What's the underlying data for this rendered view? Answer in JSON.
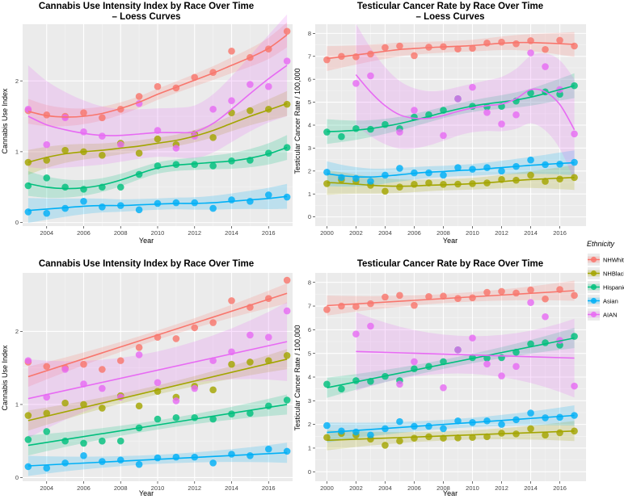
{
  "legend": {
    "title": "Ethnicity",
    "items": [
      {
        "name": "NHWhite",
        "color": "#F8766D"
      },
      {
        "name": "NHBlack",
        "color": "#A3A500"
      },
      {
        "name": "Hispanic",
        "color": "#00BF7D"
      },
      {
        "name": "Asian",
        "color": "#00B0F6"
      },
      {
        "name": "AIAN",
        "color": "#E76BF3"
      }
    ]
  },
  "chart_data": [
    {
      "id": "cannabis_loess",
      "type": "scatter",
      "fit": "loess",
      "title": [
        "Cannabis Use Intensity Index by Race Over Time",
        "– Loess Curves"
      ],
      "xlabel": "Year",
      "ylabel": "Cannabis Use Index",
      "xlim": [
        2002.7,
        2017.3
      ],
      "ylim": [
        -0.05,
        2.8
      ],
      "xticks": [
        2004,
        2006,
        2008,
        2010,
        2012,
        2014,
        2016
      ],
      "xtick_labels": [
        "2004",
        "2006",
        "2008",
        "2010",
        "2012",
        "2014",
        "2016"
      ],
      "yticks": [
        0,
        1,
        2
      ],
      "ytick_labels": [
        "0",
        "1",
        "2"
      ],
      "x": [
        2003,
        2004,
        2005,
        2006,
        2007,
        2008,
        2009,
        2010,
        2011,
        2012,
        2013,
        2014,
        2015,
        2016,
        2017
      ],
      "series": [
        {
          "name": "NHWhite",
          "values": [
            1.58,
            1.52,
            1.5,
            1.55,
            1.48,
            1.6,
            1.78,
            1.92,
            1.9,
            2.05,
            2.12,
            2.42,
            2.33,
            2.45,
            2.7
          ],
          "fit": [
            1.57,
            1.51,
            1.49,
            1.5,
            1.54,
            1.61,
            1.7,
            1.81,
            1.91,
            2.01,
            2.11,
            2.22,
            2.33,
            2.46,
            2.65
          ]
        },
        {
          "name": "NHBlack",
          "values": [
            0.85,
            0.88,
            1.02,
            1.0,
            0.95,
            1.12,
            0.98,
            1.18,
            1.1,
            1.25,
            1.2,
            1.55,
            1.58,
            1.6,
            1.67
          ],
          "fit": [
            0.85,
            0.92,
            0.97,
            1.0,
            1.02,
            1.05,
            1.08,
            1.12,
            1.16,
            1.22,
            1.3,
            1.4,
            1.5,
            1.59,
            1.68
          ]
        },
        {
          "name": "Hispanic",
          "values": [
            0.52,
            0.63,
            0.5,
            0.47,
            0.5,
            0.5,
            0.68,
            0.8,
            0.82,
            0.82,
            0.8,
            0.87,
            0.88,
            0.98,
            1.06
          ],
          "fit": [
            0.55,
            0.5,
            0.48,
            0.49,
            0.53,
            0.6,
            0.69,
            0.77,
            0.81,
            0.83,
            0.85,
            0.87,
            0.91,
            0.97,
            1.06
          ]
        },
        {
          "name": "Asian",
          "values": [
            0.15,
            0.13,
            0.2,
            0.3,
            0.22,
            0.24,
            0.18,
            0.27,
            0.28,
            0.28,
            0.2,
            0.32,
            0.3,
            0.39,
            0.36
          ],
          "fit": [
            0.17,
            0.19,
            0.21,
            0.23,
            0.24,
            0.24,
            0.25,
            0.26,
            0.27,
            0.27,
            0.28,
            0.3,
            0.32,
            0.34,
            0.37
          ]
        },
        {
          "name": "AIAN",
          "values": [
            1.6,
            1.1,
            1.48,
            1.28,
            1.22,
            1.1,
            1.68,
            1.3,
            1.05,
            1.22,
            1.6,
            1.72,
            1.95,
            1.92,
            2.28
          ],
          "fit": [
            1.5,
            1.38,
            1.31,
            1.26,
            1.23,
            1.23,
            1.25,
            1.27,
            1.27,
            1.28,
            1.4,
            1.6,
            1.82,
            2.03,
            2.22
          ]
        }
      ]
    },
    {
      "id": "testicular_loess",
      "type": "scatter",
      "fit": "loess",
      "title": [
        "Testicular Cancer Rate by Race Over Time",
        "– Loess Curves"
      ],
      "xlabel": "Year",
      "ylabel": "Testicular Cancer Rate / 100,000",
      "xlim": [
        1999.2,
        2017.8
      ],
      "ylim": [
        -0.4,
        8.4
      ],
      "xticks": [
        2000,
        2002,
        2004,
        2006,
        2008,
        2010,
        2012,
        2014,
        2016
      ],
      "xtick_labels": [
        "2000",
        "2002",
        "2004",
        "2006",
        "2008",
        "2010",
        "2012",
        "2014",
        "2016"
      ],
      "yticks": [
        0,
        1,
        2,
        3,
        4,
        5,
        6,
        7,
        8
      ],
      "ytick_labels": [
        "0",
        "1",
        "2",
        "3",
        "4",
        "5",
        "6",
        "7",
        "8"
      ],
      "x": [
        2000,
        2001,
        2002,
        2003,
        2004,
        2005,
        2006,
        2007,
        2008,
        2009,
        2010,
        2011,
        2012,
        2013,
        2014,
        2015,
        2016,
        2017
      ],
      "series": [
        {
          "name": "NHWhite",
          "values": [
            6.85,
            7.0,
            6.98,
            7.1,
            7.38,
            7.45,
            7.03,
            7.4,
            7.42,
            7.32,
            7.35,
            7.58,
            7.62,
            7.55,
            7.68,
            7.3,
            7.7,
            7.45
          ],
          "fit": [
            6.9,
            6.98,
            7.06,
            7.14,
            7.22,
            7.3,
            7.34,
            7.38,
            7.41,
            7.44,
            7.47,
            7.52,
            7.57,
            7.6,
            7.6,
            7.58,
            7.55,
            7.52
          ]
        },
        {
          "name": "NHBlack",
          "values": [
            1.45,
            1.62,
            1.55,
            1.38,
            1.12,
            1.3,
            1.42,
            1.48,
            1.42,
            1.43,
            1.45,
            1.48,
            1.63,
            1.6,
            1.82,
            1.55,
            1.65,
            1.72
          ],
          "fit": [
            1.5,
            1.47,
            1.43,
            1.38,
            1.35,
            1.34,
            1.35,
            1.38,
            1.4,
            1.42,
            1.45,
            1.49,
            1.54,
            1.59,
            1.63,
            1.66,
            1.69,
            1.72
          ]
        },
        {
          "name": "Hispanic",
          "values": [
            3.7,
            3.5,
            3.85,
            3.82,
            4.03,
            3.85,
            4.35,
            4.45,
            4.65,
            5.15,
            4.82,
            4.8,
            4.82,
            5.05,
            5.4,
            5.45,
            5.35,
            5.72
          ],
          "fit": [
            3.72,
            3.74,
            3.78,
            3.85,
            3.95,
            4.07,
            4.22,
            4.38,
            4.55,
            4.7,
            4.83,
            4.93,
            5.01,
            5.1,
            5.22,
            5.38,
            5.55,
            5.72
          ]
        },
        {
          "name": "Asian",
          "values": [
            1.95,
            1.72,
            1.68,
            1.55,
            1.82,
            2.12,
            1.92,
            1.92,
            1.82,
            2.15,
            2.08,
            2.15,
            2.0,
            2.2,
            2.48,
            2.28,
            2.3,
            2.38
          ],
          "fit": [
            1.88,
            1.8,
            1.75,
            1.74,
            1.78,
            1.84,
            1.9,
            1.95,
            1.98,
            2.02,
            2.05,
            2.1,
            2.15,
            2.2,
            2.25,
            2.29,
            2.33,
            2.36
          ]
        },
        {
          "name": "AIAN",
          "values": [
            null,
            null,
            5.82,
            6.15,
            null,
            3.7,
            4.65,
            null,
            3.55,
            5.15,
            5.65,
            4.55,
            4.05,
            4.45,
            7.15,
            6.55,
            5.55,
            3.62
          ],
          "fit": [
            null,
            null,
            6.2,
            5.45,
            4.85,
            4.45,
            4.3,
            4.3,
            4.42,
            4.6,
            4.75,
            4.85,
            4.92,
            5.15,
            5.55,
            5.45,
            4.9,
            3.8
          ]
        }
      ]
    },
    {
      "id": "cannabis_linear",
      "type": "scatter",
      "fit": "linear",
      "title": [
        "Cannabis Use Intensity Index by Race Over Time"
      ],
      "xlabel": "Year",
      "ylabel": "Cannabis Use Index",
      "xlim": [
        2002.7,
        2017.3
      ],
      "ylim": [
        -0.05,
        2.8
      ],
      "xticks": [
        2004,
        2006,
        2008,
        2010,
        2012,
        2014,
        2016
      ],
      "xtick_labels": [
        "2004",
        "2006",
        "2008",
        "2010",
        "2012",
        "2014",
        "2016"
      ],
      "yticks": [
        0,
        1,
        2
      ],
      "ytick_labels": [
        "0",
        "1",
        "2"
      ],
      "x": [
        2003,
        2004,
        2005,
        2006,
        2007,
        2008,
        2009,
        2010,
        2011,
        2012,
        2013,
        2014,
        2015,
        2016,
        2017
      ],
      "series": [
        {
          "name": "NHWhite",
          "values": [
            1.58,
            1.52,
            1.5,
            1.55,
            1.48,
            1.6,
            1.78,
            1.92,
            1.9,
            2.05,
            2.12,
            2.42,
            2.33,
            2.45,
            2.7
          ],
          "fit_endpoints": [
            1.38,
            2.52
          ]
        },
        {
          "name": "NHBlack",
          "values": [
            0.85,
            0.88,
            1.02,
            1.0,
            0.95,
            1.12,
            0.98,
            1.18,
            1.1,
            1.25,
            1.2,
            1.55,
            1.58,
            1.6,
            1.67
          ],
          "fit_endpoints": [
            0.78,
            1.62
          ]
        },
        {
          "name": "Hispanic",
          "values": [
            0.52,
            0.63,
            0.5,
            0.47,
            0.5,
            0.5,
            0.68,
            0.8,
            0.82,
            0.82,
            0.8,
            0.87,
            0.88,
            0.98,
            1.06
          ],
          "fit_endpoints": [
            0.44,
            1.0
          ]
        },
        {
          "name": "Asian",
          "values": [
            0.15,
            0.13,
            0.2,
            0.3,
            0.22,
            0.24,
            0.18,
            0.27,
            0.28,
            0.28,
            0.2,
            0.32,
            0.3,
            0.39,
            0.36
          ],
          "fit_endpoints": [
            0.16,
            0.34
          ]
        },
        {
          "name": "AIAN",
          "values": [
            1.6,
            1.1,
            1.48,
            1.28,
            1.22,
            1.1,
            1.68,
            1.3,
            1.05,
            1.22,
            1.6,
            1.72,
            1.95,
            1.92,
            2.28
          ],
          "fit_endpoints": [
            1.08,
            1.86
          ]
        }
      ]
    },
    {
      "id": "testicular_linear",
      "type": "scatter",
      "fit": "linear",
      "title": [
        "Testicular Cancer Rate by Race Over Time"
      ],
      "xlabel": "Year",
      "ylabel": "Testicular Cancer Rate / 100,000",
      "xlim": [
        1999.2,
        2017.8
      ],
      "ylim": [
        -0.4,
        8.4
      ],
      "xticks": [
        2000,
        2002,
        2004,
        2006,
        2008,
        2010,
        2012,
        2014,
        2016
      ],
      "xtick_labels": [
        "2000",
        "2002",
        "2004",
        "2006",
        "2008",
        "2010",
        "2012",
        "2014",
        "2016"
      ],
      "yticks": [
        0,
        1,
        2,
        3,
        4,
        5,
        6,
        7,
        8
      ],
      "ytick_labels": [
        "0",
        "1",
        "2",
        "3",
        "4",
        "5",
        "6",
        "7",
        "8"
      ],
      "x": [
        2000,
        2001,
        2002,
        2003,
        2004,
        2005,
        2006,
        2007,
        2008,
        2009,
        2010,
        2011,
        2012,
        2013,
        2014,
        2015,
        2016,
        2017
      ],
      "series": [
        {
          "name": "NHWhite",
          "values": [
            6.85,
            7.0,
            6.98,
            7.1,
            7.38,
            7.45,
            7.03,
            7.4,
            7.42,
            7.32,
            7.35,
            7.58,
            7.62,
            7.55,
            7.68,
            7.3,
            7.7,
            7.45
          ],
          "fit_endpoints": [
            7.02,
            7.65
          ]
        },
        {
          "name": "NHBlack",
          "values": [
            1.45,
            1.62,
            1.55,
            1.38,
            1.12,
            1.3,
            1.42,
            1.48,
            1.42,
            1.43,
            1.45,
            1.48,
            1.63,
            1.6,
            1.82,
            1.55,
            1.65,
            1.72
          ],
          "fit_endpoints": [
            1.33,
            1.72
          ]
        },
        {
          "name": "Hispanic",
          "values": [
            3.7,
            3.5,
            3.85,
            3.82,
            4.03,
            3.85,
            4.35,
            4.45,
            4.65,
            5.15,
            4.82,
            4.8,
            4.82,
            5.05,
            5.4,
            5.45,
            5.35,
            5.72
          ],
          "fit_endpoints": [
            3.55,
            5.65
          ]
        },
        {
          "name": "Asian",
          "values": [
            1.95,
            1.72,
            1.68,
            1.55,
            1.82,
            2.12,
            1.92,
            1.92,
            1.82,
            2.15,
            2.08,
            2.15,
            2.0,
            2.2,
            2.48,
            2.28,
            2.3,
            2.38
          ],
          "fit_endpoints": [
            1.66,
            2.38
          ]
        },
        {
          "name": "AIAN",
          "values": [
            null,
            null,
            5.82,
            6.15,
            null,
            3.7,
            4.65,
            null,
            3.55,
            5.15,
            5.65,
            4.55,
            4.05,
            4.45,
            7.15,
            6.55,
            5.55,
            3.62
          ],
          "fit_start_x": 2002,
          "fit_endpoints": [
            5.08,
            4.8
          ]
        }
      ]
    }
  ]
}
